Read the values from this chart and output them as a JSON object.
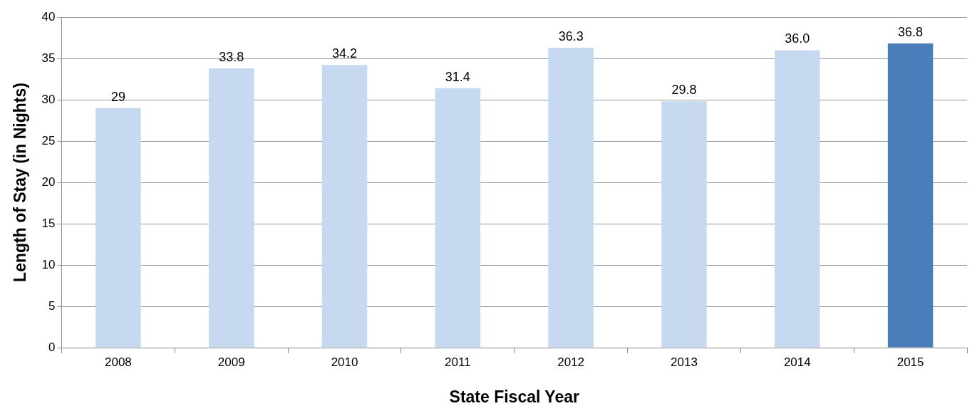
{
  "chart_data": {
    "type": "bar",
    "xlabel": "State Fiscal Year",
    "ylabel": "Length of Stay (in Nights)",
    "categories": [
      "2008",
      "2009",
      "2010",
      "2011",
      "2012",
      "2013",
      "2014",
      "2015"
    ],
    "values": [
      29,
      33.8,
      34.2,
      31.4,
      36.3,
      29.8,
      36.0,
      36.8
    ],
    "value_labels": [
      "29",
      "33.8",
      "34.2",
      "31.4",
      "36.3",
      "29.8",
      "36.0",
      "36.8"
    ],
    "colors": [
      "#c6d9f0",
      "#c6d9f0",
      "#c6d9f0",
      "#c6d9f0",
      "#c6d9f0",
      "#c6d9f0",
      "#c6d9f0",
      "#4a7ebb"
    ],
    "ylim": [
      0,
      40
    ],
    "yticks": [
      0,
      5,
      10,
      15,
      20,
      25,
      30,
      35,
      40
    ],
    "grid": "y",
    "legend": false
  }
}
